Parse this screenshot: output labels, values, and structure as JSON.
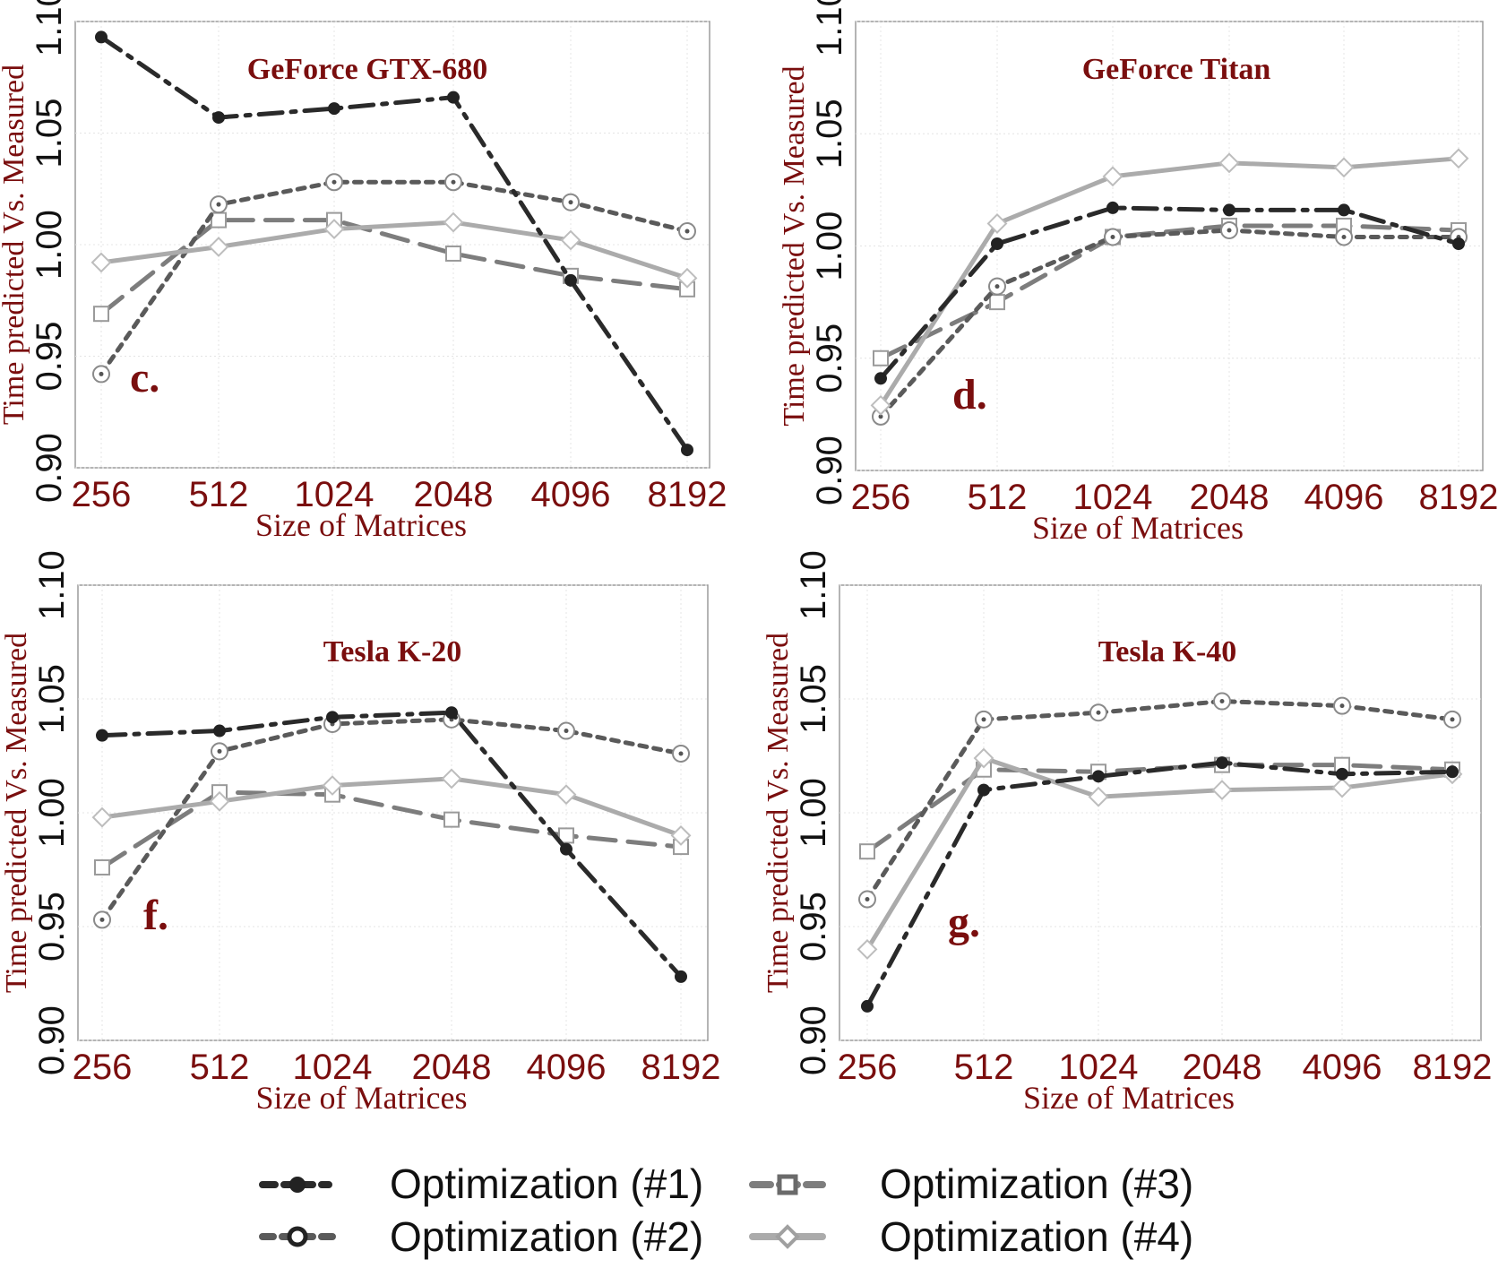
{
  "chart_data": [
    {
      "type": "line",
      "title": "GeForce GTX-680",
      "panel_label": "c.",
      "xlabel": "Size of Matrices",
      "ylabel": "Time predicted Vs. Measured",
      "categories": [
        "256",
        "512",
        "1024",
        "2048",
        "4096",
        "8192"
      ],
      "ylim": [
        0.9,
        1.1
      ],
      "yticks": [
        "0.90",
        "0.95",
        "1.00",
        "1.05",
        "1.10"
      ],
      "grid": true,
      "series": [
        {
          "name": "Optimization (#1)",
          "values": [
            1.093,
            1.057,
            1.061,
            1.066,
            0.984,
            0.908
          ]
        },
        {
          "name": "Optimization (#2)",
          "values": [
            0.942,
            1.018,
            1.028,
            1.028,
            1.019,
            1.006
          ]
        },
        {
          "name": "Optimization (#3)",
          "values": [
            0.969,
            1.011,
            1.011,
            0.996,
            0.986,
            0.98
          ]
        },
        {
          "name": "Optimization (#4)",
          "values": [
            0.992,
            0.999,
            1.007,
            1.01,
            1.002,
            0.985
          ]
        }
      ]
    },
    {
      "type": "line",
      "title": "GeForce Titan",
      "panel_label": "d.",
      "xlabel": "Size of Matrices",
      "ylabel": "Time predicted Vs. Measured",
      "categories": [
        "256",
        "512",
        "1024",
        "2048",
        "4096",
        "8192"
      ],
      "ylim": [
        0.9,
        1.1
      ],
      "yticks": [
        "0.90",
        "0.95",
        "1.00",
        "1.05",
        "1.10"
      ],
      "grid": true,
      "series": [
        {
          "name": "Optimization (#1)",
          "values": [
            0.941,
            1.001,
            1.017,
            1.016,
            1.016,
            1.001
          ]
        },
        {
          "name": "Optimization (#2)",
          "values": [
            0.924,
            0.982,
            1.004,
            1.007,
            1.004,
            1.004
          ]
        },
        {
          "name": "Optimization (#3)",
          "values": [
            0.95,
            0.975,
            1.004,
            1.009,
            1.009,
            1.007
          ]
        },
        {
          "name": "Optimization (#4)",
          "values": [
            0.929,
            1.01,
            1.031,
            1.037,
            1.035,
            1.039
          ]
        }
      ]
    },
    {
      "type": "line",
      "title": "Tesla K-20",
      "panel_label": "f.",
      "xlabel": "Size of Matrices",
      "ylabel": "Time predicted Vs. Measured",
      "categories": [
        "256",
        "512",
        "1024",
        "2048",
        "4096",
        "8192"
      ],
      "ylim": [
        0.9,
        1.1
      ],
      "yticks": [
        "0.90",
        "0.95",
        "1.00",
        "1.05",
        "1.10"
      ],
      "grid": true,
      "series": [
        {
          "name": "Optimization (#1)",
          "values": [
            1.034,
            1.036,
            1.042,
            1.044,
            0.984,
            0.928
          ]
        },
        {
          "name": "Optimization (#2)",
          "values": [
            0.953,
            1.027,
            1.039,
            1.041,
            1.036,
            1.026
          ]
        },
        {
          "name": "Optimization (#3)",
          "values": [
            0.976,
            1.009,
            1.008,
            0.997,
            0.99,
            0.985
          ]
        },
        {
          "name": "Optimization (#4)",
          "values": [
            0.998,
            1.005,
            1.012,
            1.015,
            1.008,
            0.99
          ]
        }
      ]
    },
    {
      "type": "line",
      "title": "Tesla K-40",
      "panel_label": "g.",
      "xlabel": "Size of Matrices",
      "ylabel": "Time predicted Vs. Measured",
      "categories": [
        "256",
        "512",
        "1024",
        "2048",
        "4096",
        "8192"
      ],
      "ylim": [
        0.9,
        1.1
      ],
      "yticks": [
        "0.90",
        "0.95",
        "1.00",
        "1.05",
        "1.10"
      ],
      "grid": true,
      "series": [
        {
          "name": "Optimization (#1)",
          "values": [
            0.915,
            1.01,
            1.016,
            1.022,
            1.017,
            1.018
          ]
        },
        {
          "name": "Optimization (#2)",
          "values": [
            0.962,
            1.041,
            1.044,
            1.049,
            1.047,
            1.041
          ]
        },
        {
          "name": "Optimization (#3)",
          "values": [
            0.983,
            1.019,
            1.018,
            1.021,
            1.021,
            1.019
          ]
        },
        {
          "name": "Optimization (#4)",
          "values": [
            0.94,
            1.024,
            1.007,
            1.01,
            1.011,
            1.017
          ]
        }
      ]
    }
  ],
  "legend": {
    "placement": "bottom",
    "items": [
      {
        "label": "Optimization (#1)",
        "color": "#2a2a2a",
        "marker": "filled-circle",
        "dash": "dashdot"
      },
      {
        "label": "Optimization (#2)",
        "color": "#5a5a5a",
        "marker": "open-circle",
        "dash": "dotted"
      },
      {
        "label": "Optimization (#3)",
        "color": "#7d7d7d",
        "marker": "open-square",
        "dash": "dashed"
      },
      {
        "label": "Optimization (#4)",
        "color": "#ababab",
        "marker": "open-diamond",
        "dash": "solid"
      }
    ]
  }
}
